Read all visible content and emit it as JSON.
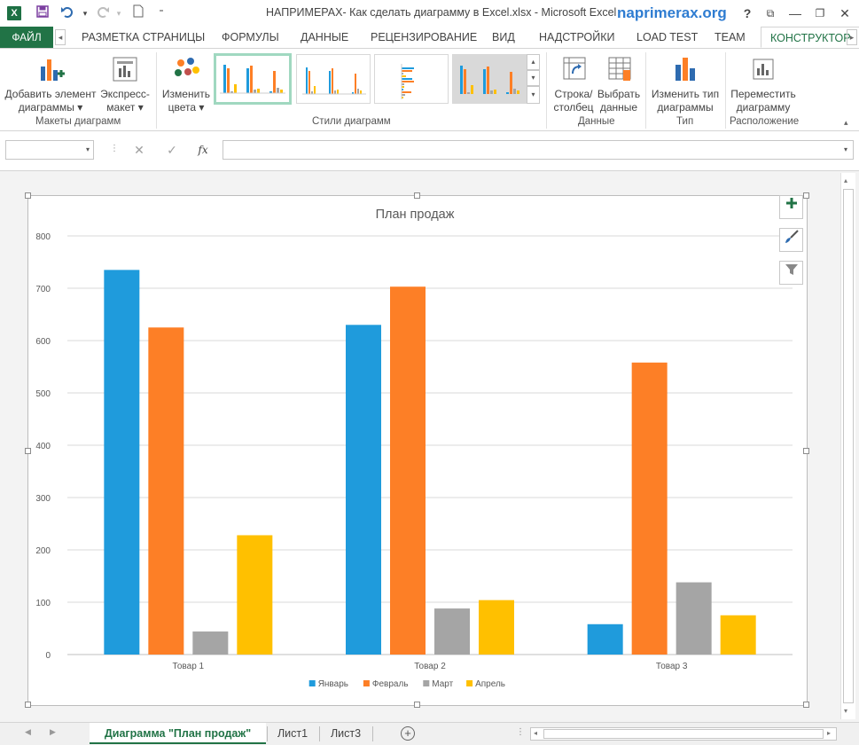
{
  "titlebar": {
    "app_icon": "X",
    "title": "НАПРИМЕРАХ- Как сделать диаграмму в Excel.xlsx - Microsoft Excel",
    "brand": "naprimerax.org",
    "help": "?",
    "minimize": "—",
    "restore": "❐",
    "close": "✕",
    "ribbon_display": "⧉"
  },
  "tabs": {
    "file": "ФАЙЛ",
    "items": [
      "РАЗМЕТКА СТРАНИЦЫ",
      "ФОРМУЛЫ",
      "ДАННЫЕ",
      "РЕЦЕНЗИРОВАНИЕ",
      "ВИД",
      "НАДСТРОЙКИ",
      "LOAD TEST",
      "TEAM"
    ],
    "active": "КОНСТРУКТОР"
  },
  "ribbon": {
    "add_element": {
      "line1": "Добавить элемент",
      "line2": "диаграммы ▾"
    },
    "quick_layout": {
      "line1": "Экспресс-",
      "line2": "макет ▾"
    },
    "layouts_group": "Макеты диаграмм",
    "change_colors": {
      "line1": "Изменить",
      "line2": "цвета ▾"
    },
    "styles_group": "Стили диаграмм",
    "switch_row": {
      "line1": "Строка/",
      "line2": "столбец"
    },
    "select_data": {
      "line1": "Выбрать",
      "line2": "данные"
    },
    "data_group": "Данные",
    "change_type": {
      "line1": "Изменить тип",
      "line2": "диаграммы"
    },
    "type_group": "Тип",
    "move_chart": {
      "line1": "Переместить",
      "line2": "диаграмму"
    },
    "location_group": "Расположение"
  },
  "formula_bar": {
    "name_value": "",
    "cancel": "✕",
    "enter": "✓",
    "fx": "fx",
    "formula_value": ""
  },
  "chart_data": {
    "type": "bar",
    "title": "План продаж",
    "categories": [
      "Товар 1",
      "Товар 2",
      "Товар 3"
    ],
    "series": [
      {
        "name": "Январь",
        "color": "#1f9bdc",
        "values": [
          735,
          630,
          58
        ]
      },
      {
        "name": "Февраль",
        "color": "#fd7f26",
        "values": [
          625,
          703,
          558
        ]
      },
      {
        "name": "Март",
        "color": "#a5a5a5",
        "values": [
          44,
          88,
          138
        ]
      },
      {
        "name": "Апрель",
        "color": "#ffc000",
        "values": [
          228,
          104,
          75
        ]
      }
    ],
    "ylim": [
      0,
      800
    ],
    "yticks": [
      "0",
      "100",
      "200",
      "300",
      "400",
      "500",
      "600",
      "700",
      "800"
    ],
    "xlabel": "",
    "ylabel": "",
    "grid": true,
    "legend_position": "bottom"
  },
  "chart_tools": {
    "add_icon": "plus-icon",
    "style_icon": "brush-icon",
    "filter_icon": "filter-icon"
  },
  "sheet_tabs": {
    "active": "Диаграмма \"План продаж\"",
    "others": [
      "Лист1",
      "Лист3"
    ],
    "add": "+"
  }
}
